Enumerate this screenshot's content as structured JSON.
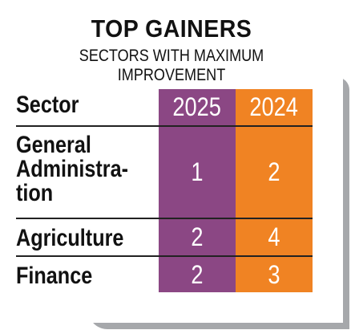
{
  "chart_data": {
    "type": "table",
    "title": "TOP GAINERS",
    "subtitle": "SECTORS WITH MAXIMUM IMPROVEMENT",
    "columns": [
      "Sector",
      "2025",
      "2024"
    ],
    "rows": [
      {
        "sector": [
          "General",
          "Administra-",
          "tion"
        ],
        "y2025": "1",
        "y2024": "2"
      },
      {
        "sector": [
          "Agriculture"
        ],
        "y2025": "2",
        "y2024": "4"
      },
      {
        "sector": [
          "Finance"
        ],
        "y2025": "2",
        "y2024": "3"
      }
    ],
    "colors": {
      "col2025": "#8b4784",
      "col2024": "#f08323"
    }
  }
}
